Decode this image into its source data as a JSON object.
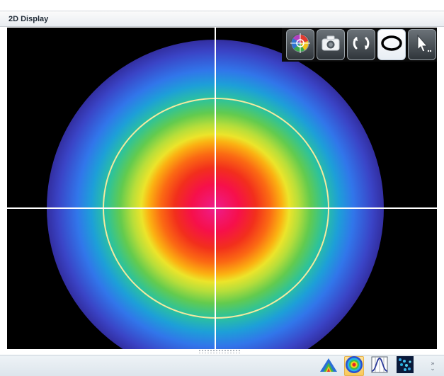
{
  "window": {
    "title": "2D Display"
  },
  "toolbar": {
    "buttons": [
      {
        "icon": "crosshair-target-icon",
        "active": false
      },
      {
        "icon": "camera-icon",
        "active": false
      },
      {
        "icon": "refresh-icon",
        "active": false
      },
      {
        "icon": "ellipse-aperture-icon",
        "active": true
      },
      {
        "icon": "pointer-cursor-icon",
        "active": false
      }
    ]
  },
  "beam_display": {
    "colormap": [
      "#ee1c8c",
      "#f22f1c",
      "#fbb212",
      "#ece42a",
      "#63cb4e",
      "#1d9fd8",
      "#3a44c6",
      "#180b3e"
    ],
    "crosshair_color": "#ffffff",
    "aperture_color": "#f3e9a0"
  },
  "bottom_bar": {
    "views": [
      {
        "icon": "3d-display-icon",
        "active": false
      },
      {
        "icon": "2d-display-icon",
        "active": true
      },
      {
        "icon": "profile-chart-icon",
        "active": false
      },
      {
        "icon": "scatter-points-icon",
        "active": false
      }
    ],
    "more_icon": "chevron-double-right-icon"
  }
}
